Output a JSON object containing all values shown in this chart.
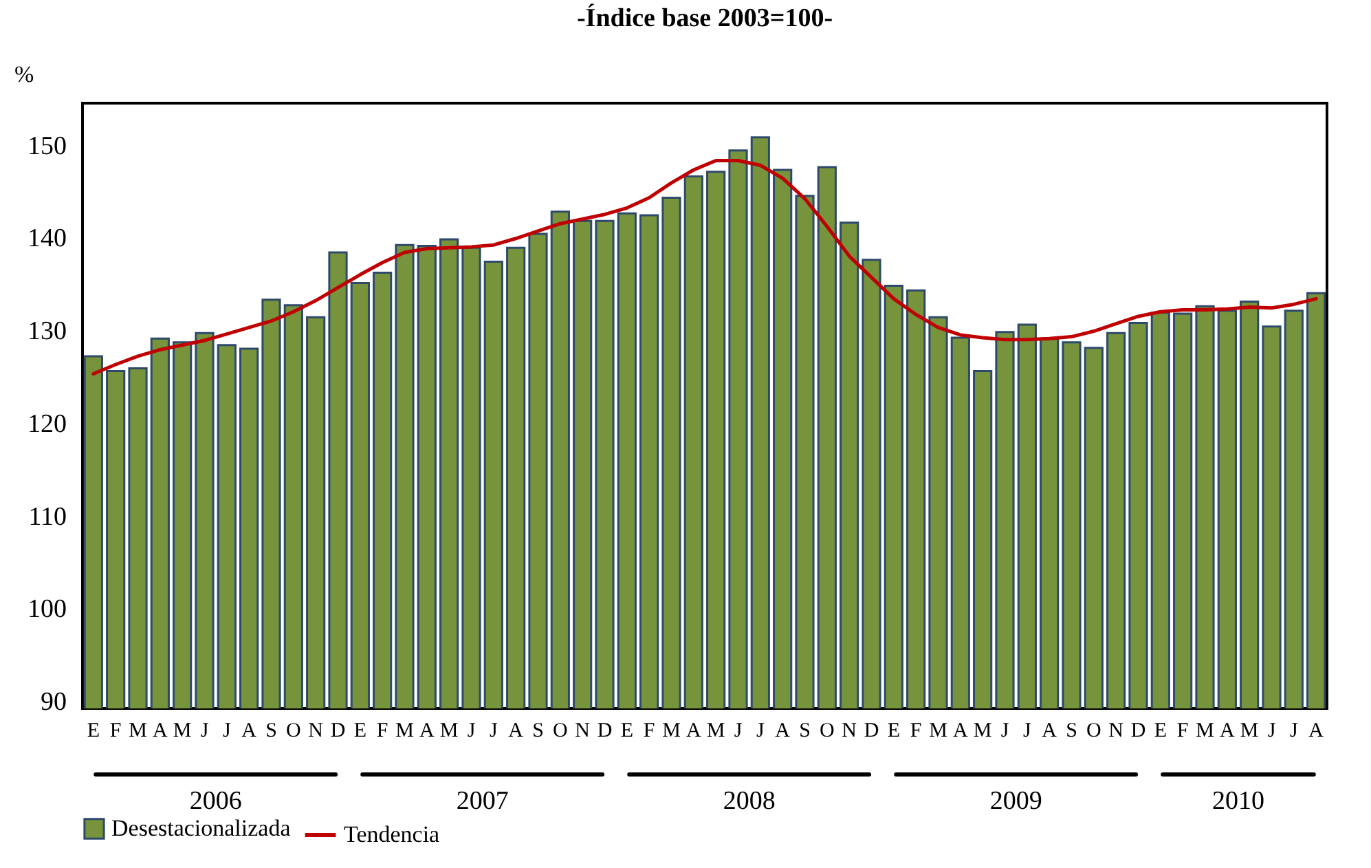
{
  "chart_data": {
    "type": "bar",
    "title": "-Índice base 2003=100-",
    "ylabel": "%",
    "categories": [
      "E",
      "F",
      "M",
      "A",
      "M",
      "J",
      "J",
      "A",
      "S",
      "O",
      "N",
      "D",
      "E",
      "F",
      "M",
      "A",
      "M",
      "J",
      "J",
      "A",
      "S",
      "O",
      "N",
      "D",
      "E",
      "F",
      "M",
      "A",
      "M",
      "J",
      "J",
      "A",
      "S",
      "O",
      "N",
      "D",
      "E",
      "F",
      "M",
      "A",
      "M",
      "J",
      "J",
      "A",
      "S",
      "O",
      "N",
      "D",
      "E",
      "F",
      "M",
      "A",
      "M",
      "J",
      "J",
      "A"
    ],
    "series": [
      {
        "name": "Desestacionalizada",
        "color": "#77933c",
        "values": [
          127.2,
          125.6,
          125.9,
          129.1,
          128.7,
          129.7,
          128.4,
          128.0,
          133.3,
          132.7,
          131.4,
          138.4,
          135.1,
          136.2,
          139.2,
          139.1,
          139.8,
          138.9,
          137.4,
          138.9,
          140.4,
          142.8,
          141.8,
          141.8,
          142.6,
          142.4,
          144.3,
          146.6,
          147.1,
          149.4,
          150.8,
          147.3,
          144.5,
          147.6,
          141.6,
          137.6,
          134.8,
          134.3,
          131.4,
          129.2,
          125.6,
          129.8,
          130.6,
          129.1,
          128.7,
          128.1,
          129.7,
          130.8,
          131.9,
          131.8,
          132.6,
          132.1,
          133.1,
          130.4,
          132.1,
          134.0
        ]
      },
      {
        "name": "Tendencia",
        "type": "line",
        "color": "#c00000",
        "values": [
          125.3,
          126.3,
          127.2,
          127.9,
          128.4,
          128.9,
          129.6,
          130.3,
          131.0,
          132.0,
          133.2,
          134.6,
          136.0,
          137.3,
          138.4,
          138.8,
          138.9,
          139.0,
          139.2,
          139.9,
          140.7,
          141.5,
          142.0,
          142.5,
          143.2,
          144.3,
          145.9,
          147.3,
          148.3,
          148.3,
          147.8,
          146.4,
          144.2,
          141.2,
          138.0,
          135.7,
          133.4,
          131.7,
          130.3,
          129.5,
          129.2,
          129.0,
          129.0,
          129.1,
          129.3,
          129.9,
          130.7,
          131.5,
          132.0,
          132.2,
          132.2,
          132.3,
          132.5,
          132.4,
          132.8,
          133.4
        ]
      }
    ],
    "ylim": [
      89.2,
      154.5
    ],
    "yticks": [
      90,
      100,
      110,
      120,
      130,
      140,
      150
    ],
    "legend": "bottom",
    "marker": "none",
    "annotations": [
      "2006",
      "2007",
      "2008",
      "2009",
      "2010"
    ]
  }
}
